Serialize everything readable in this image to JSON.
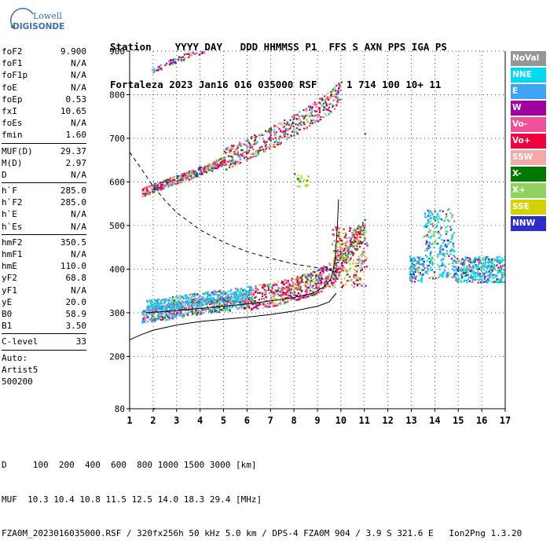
{
  "logo": {
    "line1": "Lowell",
    "line2": "DIGISONDE"
  },
  "header": {
    "labels_line": "Station    YYYY DAY   DDD HHMMSS P1  FFS S AXN PPS IGA PS",
    "values_line": "Fortaleza 2023 Jan16 016 035000 RSF     1 714 100 10+ 11"
  },
  "params": [
    {
      "name": "foF2",
      "value": "9.900"
    },
    {
      "name": "foF1",
      "value": "N/A"
    },
    {
      "name": "foF1p",
      "value": "N/A"
    },
    {
      "name": "foE",
      "value": "N/A"
    },
    {
      "name": "foEp",
      "value": "0.53"
    },
    {
      "name": "fxI",
      "value": "10.65"
    },
    {
      "name": "foEs",
      "value": "N/A"
    },
    {
      "name": "fmin",
      "value": "1.60"
    },
    {
      "sep": true
    },
    {
      "name": "MUF(D)",
      "value": "29.37"
    },
    {
      "name": "M(D)",
      "value": "2.97"
    },
    {
      "name": "D",
      "value": "N/A"
    },
    {
      "sep": true
    },
    {
      "name": "h`F",
      "value": "285.0"
    },
    {
      "name": "h`F2",
      "value": "285.0"
    },
    {
      "name": "h`E",
      "value": "N/A"
    },
    {
      "name": "h`Es",
      "value": "N/A"
    },
    {
      "sep": true
    },
    {
      "name": "hmF2",
      "value": "350.5"
    },
    {
      "name": "hmF1",
      "value": "N/A"
    },
    {
      "name": "hmE",
      "value": "110.0"
    },
    {
      "name": "yF2",
      "value": "68.8"
    },
    {
      "name": "yF1",
      "value": "N/A"
    },
    {
      "name": "yE",
      "value": "20.0"
    },
    {
      "name": "B0",
      "value": "58.9"
    },
    {
      "name": "B1",
      "value": "3.50"
    },
    {
      "sep": true
    },
    {
      "name": "C-level",
      "value": "33"
    },
    {
      "sep": true
    },
    {
      "text": "Auto:"
    },
    {
      "text": "Artist5"
    },
    {
      "text": "500200"
    }
  ],
  "legend": [
    {
      "label": "NoVal",
      "color": "#969696"
    },
    {
      "label": "NNE",
      "color": "#00d8f0"
    },
    {
      "label": "E",
      "color": "#3ea4f4"
    },
    {
      "label": "W",
      "color": "#a000a0"
    },
    {
      "label": "Vo-",
      "color": "#f0509a"
    },
    {
      "label": "Vo+",
      "color": "#f0003c"
    },
    {
      "label": "SSW",
      "color": "#f4a8a8"
    },
    {
      "label": "X-",
      "color": "#007800"
    },
    {
      "label": "X+",
      "color": "#90d260"
    },
    {
      "label": "SSE",
      "color": "#d2d200"
    },
    {
      "label": "NNW",
      "color": "#2c2cc8"
    }
  ],
  "footer": {
    "line1": "D     100  200  400  600  800 1000 1500 3000 [km]",
    "line2": "MUF  10.3 10.4 10.8 11.5 12.5 14.0 18.3 29.4 [MHz]",
    "line3": "FZA0M_2023016035000.RSF / 320fx256h 50 kHz 5.0 km / DPS-4 FZA0M 904 / 3.9 S 321.6 E   Ion2Png 1.3.20"
  },
  "chart_data": {
    "type": "scatter",
    "xlim": [
      1,
      17
    ],
    "ylim": [
      80,
      900
    ],
    "x_ticks": [
      1,
      2,
      3,
      4,
      5,
      6,
      7,
      8,
      9,
      10,
      11,
      12,
      13,
      14,
      15,
      16,
      17
    ],
    "y_ticks": [
      80,
      200,
      300,
      400,
      500,
      600,
      700,
      800,
      900
    ],
    "grid": true,
    "series": [
      {
        "name": "O-trace (Vo+)",
        "points": [
          [
            1.5,
            290
          ],
          [
            2,
            292
          ],
          [
            2.5,
            295
          ],
          [
            3,
            300
          ],
          [
            3.5,
            305
          ],
          [
            4,
            308
          ],
          [
            4.5,
            312
          ],
          [
            5,
            315
          ],
          [
            5.5,
            318
          ],
          [
            6,
            322
          ],
          [
            6.5,
            327
          ],
          [
            7,
            332
          ],
          [
            7.5,
            338
          ],
          [
            8,
            345
          ],
          [
            8.5,
            353
          ],
          [
            9,
            362
          ],
          [
            9.5,
            378
          ],
          [
            9.8,
            395
          ],
          [
            10,
            410
          ],
          [
            10.2,
            428
          ],
          [
            10.5,
            450
          ],
          [
            10.8,
            470
          ],
          [
            11,
            480
          ]
        ]
      },
      {
        "name": "F2 multiple-hop trace",
        "points": [
          [
            1.5,
            575
          ],
          [
            2,
            585
          ],
          [
            2.5,
            595
          ],
          [
            3,
            605
          ],
          [
            3.5,
            615
          ],
          [
            4,
            625
          ],
          [
            4.5,
            635
          ],
          [
            5,
            648
          ],
          [
            5.5,
            660
          ],
          [
            6,
            672
          ],
          [
            6.5,
            685
          ],
          [
            7,
            698
          ],
          [
            7.5,
            712
          ],
          [
            8,
            727
          ],
          [
            8.5,
            742
          ],
          [
            9,
            760
          ],
          [
            9.5,
            778
          ],
          [
            9.8,
            795
          ],
          [
            10,
            810
          ]
        ]
      },
      {
        "name": "Upper trace",
        "points": [
          [
            2,
            858
          ],
          [
            2.5,
            870
          ],
          [
            3,
            882
          ],
          [
            3.5,
            892
          ],
          [
            4,
            900
          ]
        ]
      },
      {
        "name": "Spread echoes",
        "points": [
          [
            13,
            410
          ],
          [
            13.3,
            440
          ],
          [
            13.6,
            420
          ],
          [
            14,
            450
          ],
          [
            14.2,
            470
          ],
          [
            14.5,
            430
          ],
          [
            14.8,
            415
          ],
          [
            15,
            405
          ],
          [
            15.5,
            400
          ],
          [
            16,
            395
          ],
          [
            16.5,
            400
          ],
          [
            16.9,
            405
          ]
        ]
      }
    ],
    "curves": [
      {
        "name": "Electron density profile",
        "style": "solid",
        "points": [
          [
            1,
            238
          ],
          [
            1.5,
            250
          ],
          [
            2,
            260
          ],
          [
            3,
            272
          ],
          [
            4,
            280
          ],
          [
            5,
            285
          ],
          [
            6,
            290
          ],
          [
            7,
            296
          ],
          [
            8,
            304
          ],
          [
            9,
            315
          ],
          [
            9.5,
            325
          ],
          [
            9.8,
            345
          ]
        ]
      },
      {
        "name": "Model trace (dashed)",
        "style": "dashed",
        "points": [
          [
            1,
            668
          ],
          [
            1.5,
            630
          ],
          [
            2,
            590
          ],
          [
            2.5,
            558
          ],
          [
            3,
            530
          ],
          [
            4,
            490
          ],
          [
            5,
            462
          ],
          [
            6,
            440
          ],
          [
            7,
            425
          ],
          [
            8,
            412
          ],
          [
            9,
            403
          ],
          [
            9.8,
            395
          ]
        ]
      },
      {
        "name": "Computed trace",
        "style": "solid",
        "points": [
          [
            1.7,
            300
          ],
          [
            3,
            305
          ],
          [
            4,
            310
          ],
          [
            5,
            315
          ],
          [
            6,
            320
          ],
          [
            7,
            327
          ],
          [
            8,
            335
          ],
          [
            8.8,
            345
          ],
          [
            9.3,
            360
          ],
          [
            9.6,
            380
          ],
          [
            9.75,
            420
          ],
          [
            9.85,
            500
          ],
          [
            9.9,
            560
          ]
        ]
      }
    ]
  }
}
